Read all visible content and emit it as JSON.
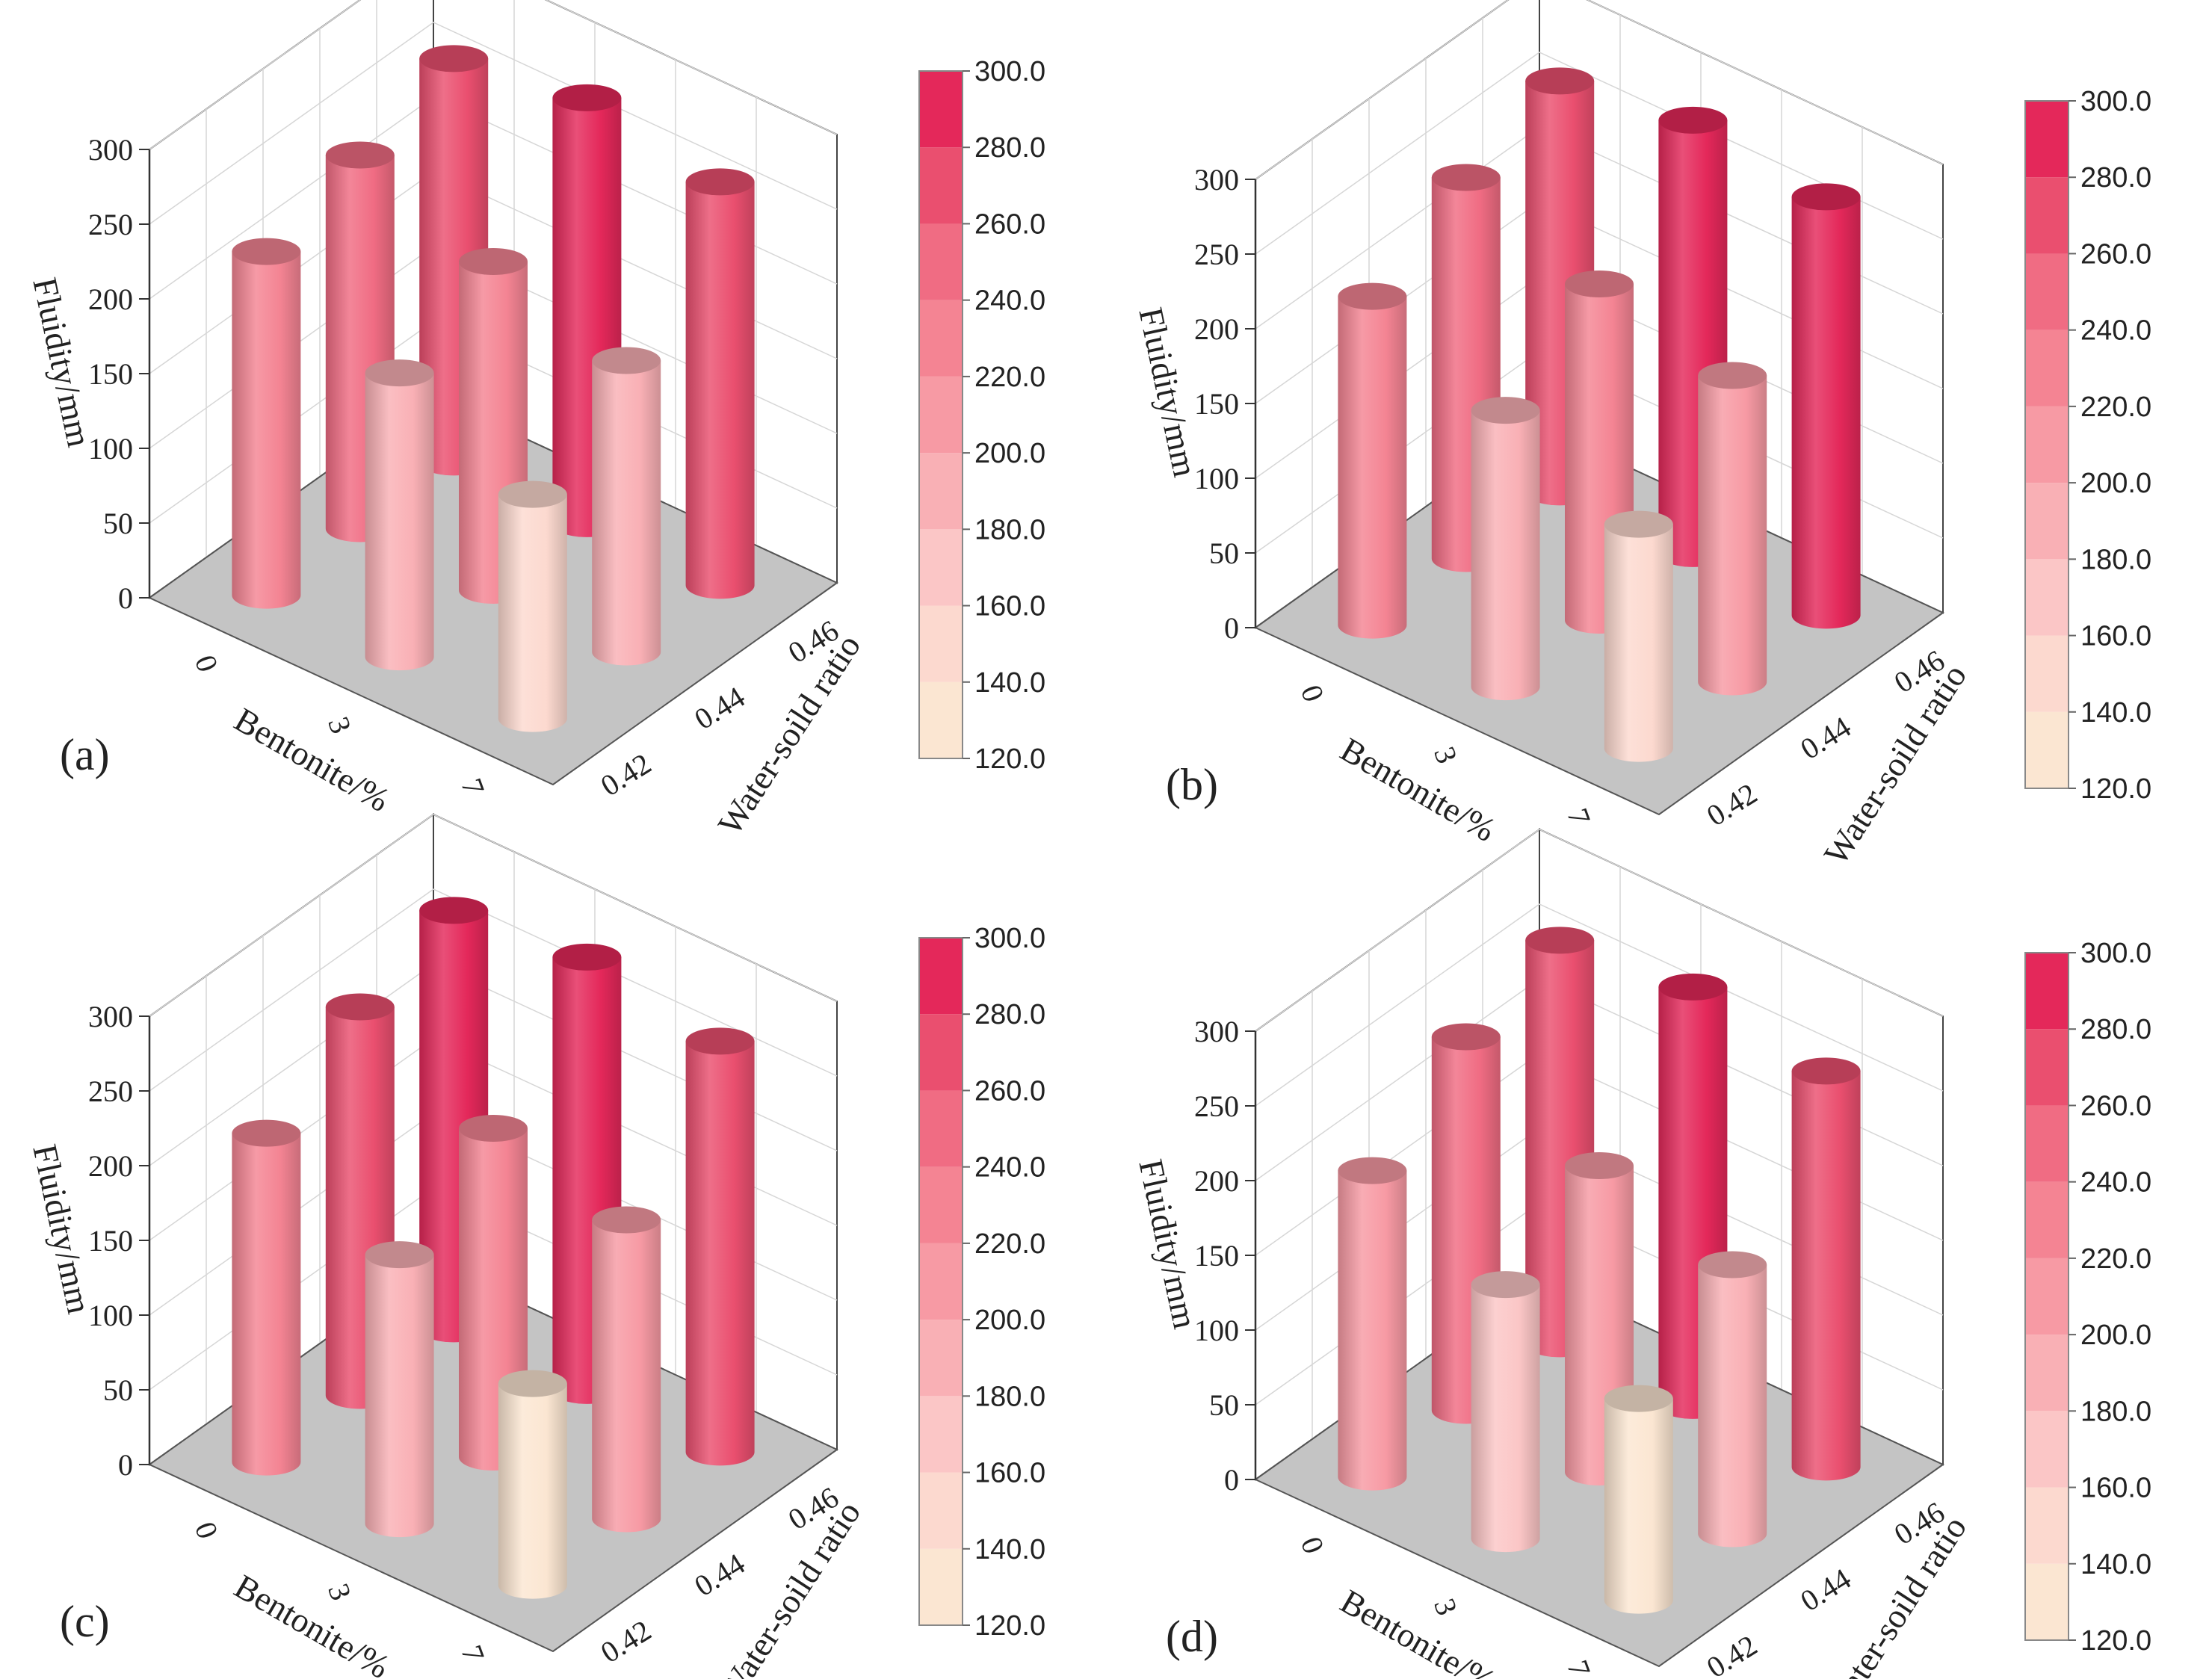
{
  "chart_data": [
    {
      "type": "bar3d",
      "panel_label": "(a)",
      "zlabel": "Fluidity/mm",
      "xlabel": "Bentonite/%",
      "ylabel": "Water-soild ratio",
      "x_categories": [
        "0",
        "3",
        "7"
      ],
      "y_categories": [
        "0.42",
        "0.44",
        "0.46"
      ],
      "zlim": [
        0,
        300
      ],
      "z_ticks": [
        "0",
        "50",
        "100",
        "150",
        "200",
        "250",
        "300"
      ],
      "values": [
        [
          230,
          250,
          270
        ],
        [
          190,
          220,
          285
        ],
        [
          150,
          195,
          270
        ]
      ],
      "colorbar": {
        "min": 120,
        "max": 300,
        "ticks": [
          "120.0",
          "140.0",
          "160.0",
          "180.0",
          "200.0",
          "220.0",
          "240.0",
          "260.0",
          "280.0",
          "300.0"
        ]
      }
    },
    {
      "type": "bar3d",
      "panel_label": "(b)",
      "zlabel": "Fluidity/mm",
      "xlabel": "Bentonite/%",
      "ylabel": "Water-soild ratio",
      "x_categories": [
        "0",
        "3",
        "7"
      ],
      "y_categories": [
        "0.42",
        "0.44",
        "0.46"
      ],
      "zlim": [
        0,
        300
      ],
      "z_ticks": [
        "0",
        "50",
        "100",
        "150",
        "200",
        "250",
        "300"
      ],
      "values": [
        [
          220,
          255,
          275
        ],
        [
          185,
          225,
          290
        ],
        [
          150,
          205,
          280
        ]
      ],
      "colorbar": {
        "min": 120,
        "max": 300,
        "ticks": [
          "120.0",
          "140.0",
          "160.0",
          "180.0",
          "200.0",
          "220.0",
          "240.0",
          "260.0",
          "280.0",
          "300.0"
        ]
      }
    },
    {
      "type": "bar3d",
      "panel_label": "(c)",
      "zlabel": "Fluidity/mm",
      "xlabel": "Bentonite/%",
      "ylabel": "Water-soild ratio",
      "x_categories": [
        "0",
        "3",
        "7"
      ],
      "y_categories": [
        "0.42",
        "0.44",
        "0.46"
      ],
      "zlim": [
        0,
        300
      ],
      "z_ticks": [
        "0",
        "50",
        "100",
        "150",
        "200",
        "250",
        "300"
      ],
      "values": [
        [
          220,
          260,
          280
        ],
        [
          180,
          220,
          290
        ],
        [
          135,
          200,
          275
        ]
      ],
      "colorbar": {
        "min": 120,
        "max": 300,
        "ticks": [
          "120.0",
          "140.0",
          "160.0",
          "180.0",
          "200.0",
          "220.0",
          "240.0",
          "260.0",
          "280.0",
          "300.0"
        ]
      }
    },
    {
      "type": "bar3d",
      "panel_label": "(d)",
      "zlabel": "Fluidity/mm",
      "xlabel": "Bentonite/%",
      "ylabel": "Water-soild ratio",
      "x_categories": [
        "0",
        "3",
        "7"
      ],
      "y_categories": [
        "0.42",
        "0.44",
        "0.46"
      ],
      "zlim": [
        0,
        300
      ],
      "z_ticks": [
        "0",
        "50",
        "100",
        "150",
        "200",
        "250",
        "300"
      ],
      "values": [
        [
          205,
          250,
          270
        ],
        [
          170,
          205,
          280
        ],
        [
          135,
          180,
          265
        ]
      ],
      "colorbar": {
        "min": 120,
        "max": 300,
        "ticks": [
          "120.0",
          "140.0",
          "160.0",
          "180.0",
          "200.0",
          "220.0",
          "240.0",
          "260.0",
          "280.0",
          "300.0"
        ]
      }
    }
  ]
}
